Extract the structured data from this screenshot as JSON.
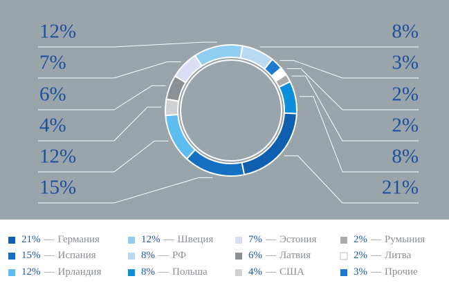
{
  "chart_data": {
    "type": "donut",
    "categories": [
      "РФ",
      "Прочие",
      "Литва",
      "Румыния",
      "Польша",
      "Германия",
      "Испания",
      "Ирландия",
      "США",
      "Латвия",
      "Эстония",
      "Швеция"
    ],
    "values": [
      8,
      3,
      2,
      2,
      8,
      21,
      15,
      12,
      4,
      6,
      7,
      12
    ],
    "value_labels": [
      "8%",
      "3%",
      "2%",
      "2%",
      "8%",
      "21%",
      "15%",
      "12%",
      "4%",
      "6%",
      "7%",
      "12%"
    ],
    "colors": [
      "#b9d9f3",
      "#1a7bd0",
      "#ffffff",
      "#a9abad",
      "#0b8fdc",
      "#0f5fb0",
      "#1570c4",
      "#5cbdee",
      "#cfd0d2",
      "#8b9095",
      "#d9def4",
      "#8fcdf1"
    ],
    "separator": "—"
  }
}
